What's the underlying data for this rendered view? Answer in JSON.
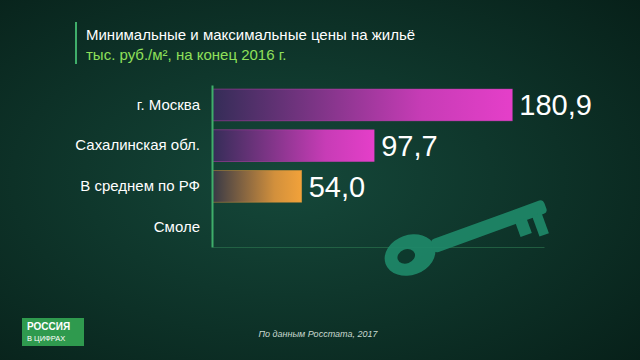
{
  "chart_data": {
    "type": "bar",
    "orientation": "horizontal",
    "title": "Минимальные и максимальные цены на жильё",
    "subtitle": "тыс. руб./м², на конец 2016 г.",
    "categories": [
      "г. Москва",
      "Сахалинская обл.",
      "В среднем по РФ",
      "Смоле"
    ],
    "values": [
      180.9,
      97.7,
      54.0,
      null
    ],
    "value_labels": [
      "180,9",
      "97,7",
      "54,0",
      null
    ],
    "colors": [
      "#e53fc9",
      "#e53fc9",
      "#f2a23a",
      "#e53fc9"
    ],
    "xlim": [
      0,
      200
    ],
    "tick_labels": "y",
    "data_labels": true,
    "grid": false,
    "annotations": [
      "По данным Росстата, 2017",
      "РОССИЯ",
      "В ЦИФРАХ"
    ]
  }
}
